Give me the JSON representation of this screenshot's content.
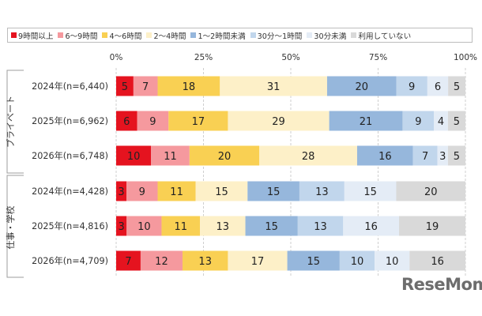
{
  "chart_data": {
    "type": "bar",
    "orientation": "horizontal",
    "stacked": true,
    "xlim": [
      0,
      100
    ],
    "x_ticks": [
      "0%",
      "25%",
      "50%",
      "75%",
      "100%"
    ],
    "grid": true,
    "legend_position": "top",
    "series": [
      {
        "name": "9時間以上",
        "color": "#e5131f"
      },
      {
        "name": "6〜9時間",
        "color": "#f5999e"
      },
      {
        "name": "4〜6時間",
        "color": "#f9d053"
      },
      {
        "name": "2〜4時間",
        "color": "#fdf0c8"
      },
      {
        "name": "1〜2時間未満",
        "color": "#96b7dc"
      },
      {
        "name": "30分〜1時間",
        "color": "#c1d6ec"
      },
      {
        "name": "30分未満",
        "color": "#e4ecf6"
      },
      {
        "name": "利用していない",
        "color": "#d9d9d9"
      }
    ],
    "groups": [
      {
        "label": "プライベート",
        "rows": [
          {
            "label": "2024年(n=6,440)",
            "values": [
              5,
              7,
              18,
              31,
              20,
              9,
              6,
              5
            ]
          },
          {
            "label": "2025年(n=6,962)",
            "values": [
              6,
              9,
              17,
              29,
              21,
              9,
              4,
              5
            ]
          },
          {
            "label": "2026年(n=6,748)",
            "values": [
              10,
              11,
              20,
              28,
              16,
              7,
              3,
              5
            ]
          }
        ]
      },
      {
        "label": "仕事・学校",
        "rows": [
          {
            "label": "2024年(n=4,428)",
            "values": [
              3,
              9,
              11,
              15,
              15,
              13,
              15,
              20
            ]
          },
          {
            "label": "2025年(n=4,816)",
            "values": [
              3,
              10,
              11,
              13,
              15,
              13,
              16,
              19
            ]
          },
          {
            "label": "2026年(n=4,709)",
            "values": [
              7,
              12,
              13,
              17,
              15,
              10,
              10,
              16
            ]
          }
        ]
      }
    ]
  },
  "watermark": "ReseMom"
}
